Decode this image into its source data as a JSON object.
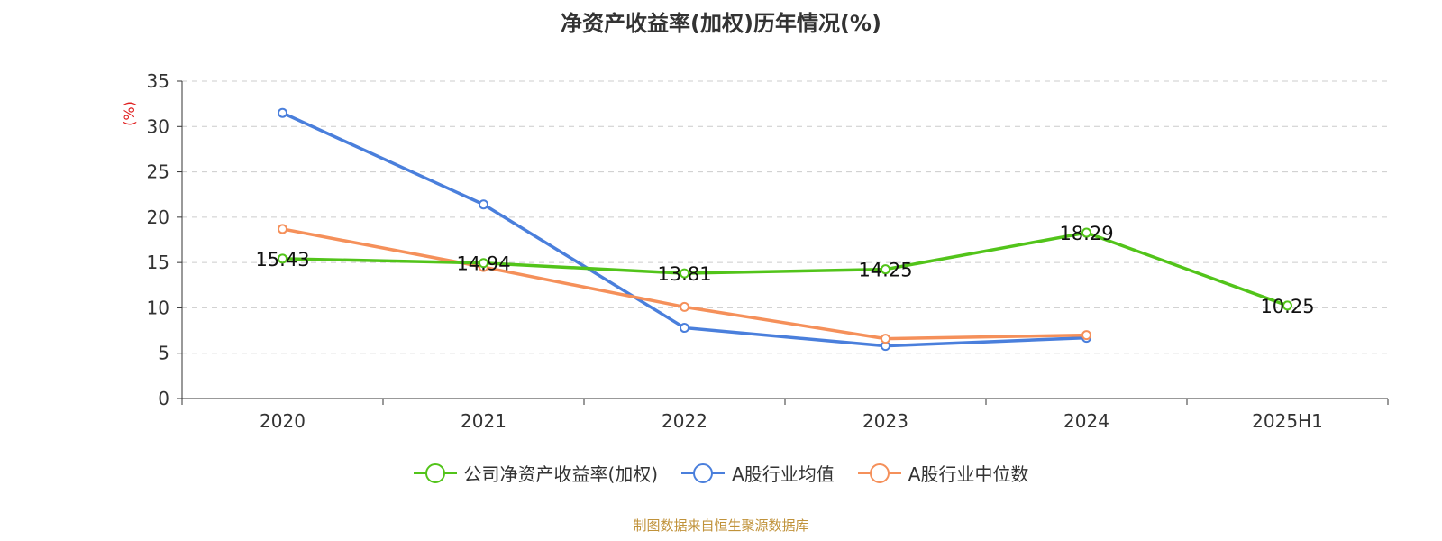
{
  "chart_data": {
    "type": "line",
    "title": "净资产收益率(加权)历年情况(%)",
    "ylabel": "(%)",
    "xlabel": "",
    "categories": [
      "2020",
      "2021",
      "2022",
      "2023",
      "2024",
      "2025H1"
    ],
    "ylim": [
      0,
      35
    ],
    "yticks": [
      0,
      5,
      10,
      15,
      20,
      25,
      30,
      35
    ],
    "grid": true,
    "legend_position": "bottom",
    "series": [
      {
        "name": "公司净资产收益率(加权)",
        "color": "#52c41a",
        "values": [
          15.43,
          14.94,
          13.81,
          14.25,
          18.29,
          10.25
        ],
        "labels": [
          "15.43",
          "14.94",
          "13.81",
          "14.25",
          "18.29",
          "10.25"
        ]
      },
      {
        "name": "A股行业均值",
        "color": "#4a7fdc",
        "values": [
          31.5,
          21.4,
          7.8,
          5.8,
          6.7,
          null
        ]
      },
      {
        "name": "A股行业中位数",
        "color": "#f5905a",
        "values": [
          18.7,
          14.5,
          10.1,
          6.6,
          7.0,
          null
        ]
      }
    ]
  },
  "source": "制图数据来自恒生聚源数据库"
}
